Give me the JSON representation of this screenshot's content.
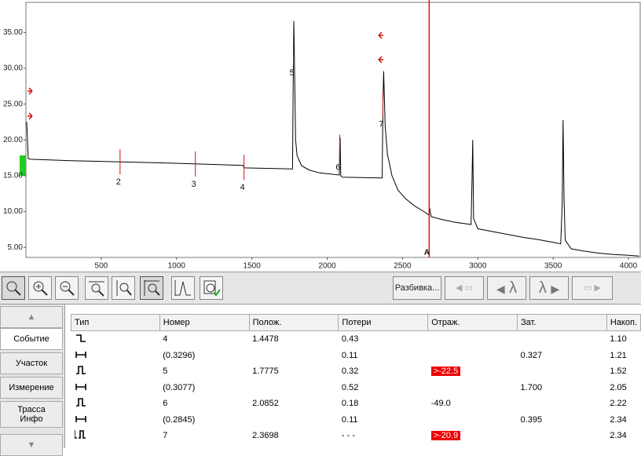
{
  "chart_data": {
    "type": "line",
    "x": [
      5,
      15,
      30,
      300,
      600,
      900,
      1200,
      1440,
      1450,
      1770,
      1775,
      1778,
      1782,
      1790,
      1800,
      1830,
      1880,
      1950,
      2080,
      2083,
      2086,
      2090,
      2100,
      2365,
      2370,
      2375,
      2385,
      2400,
      2430,
      2470,
      2520,
      2580,
      2650,
      2675,
      2680,
      2690,
      2760,
      2850,
      2955,
      2962,
      2966,
      2972,
      3000,
      3100,
      3200,
      3300,
      3400,
      3500,
      3550,
      3560,
      3566,
      3572,
      3580,
      3620,
      3700,
      3800,
      3900,
      4000,
      4070
    ],
    "series": [
      {
        "color": "#000000",
        "values": [
          22.5,
          17.4,
          17.3,
          17.1,
          16.95,
          16.8,
          16.6,
          16.45,
          16.1,
          15.95,
          30,
          36.6,
          32,
          20,
          17.8,
          16.4,
          15.8,
          15.4,
          15.1,
          19,
          20.3,
          15,
          14.8,
          14.7,
          25,
          29.6,
          22,
          18,
          15,
          13,
          11.8,
          10.8,
          9.9,
          9.5,
          10.5,
          9.3,
          8.9,
          8.5,
          8.2,
          15,
          20,
          9,
          7.6,
          7.2,
          6.8,
          6.4,
          6.1,
          5.7,
          5.5,
          11,
          22.8,
          12,
          6,
          4.8,
          4.5,
          4.2,
          4,
          3.9,
          3.8
        ]
      }
    ],
    "xlim": [
      0,
      4078
    ],
    "ylim": [
      3.6,
      39.2
    ],
    "xticks": [
      500,
      1000,
      1500,
      2000,
      2500,
      3000,
      3500,
      4000
    ],
    "yticks": [
      {
        "value": 5,
        "label": "5.00"
      },
      {
        "value": 10,
        "label": "10.00"
      },
      {
        "value": 15,
        "label": "15.00"
      },
      {
        "value": 20,
        "label": "20.00"
      },
      {
        "value": 25,
        "label": "25.00"
      },
      {
        "value": 30,
        "label": "30.00"
      },
      {
        "value": 35,
        "label": "35.00"
      }
    ],
    "events": [
      {
        "label": "2",
        "x": 625
      },
      {
        "label": "3",
        "x": 1125
      },
      {
        "label": "4",
        "x": 1448
      },
      {
        "label": "5",
        "x": 1776
      },
      {
        "label": "6",
        "x": 2083
      },
      {
        "label": "7",
        "x": 2370
      }
    ],
    "cursor": {
      "label": "A",
      "x": 2677
    }
  },
  "toolbar": {
    "split": "Разбивка...",
    "lambda_prev": "λ",
    "lambda_next": "λ"
  },
  "tabs": [
    "Событие",
    "Участок",
    "Измерение",
    "Трасса Инфо"
  ],
  "table": {
    "columns": [
      "Тип",
      "Номер",
      "Полож.",
      "Потери",
      "Отраж.",
      "Зат.",
      "Накоп."
    ],
    "rows": [
      {
        "number": "4",
        "position": "1.4478",
        "loss": "0.43",
        "cumulative": "1.10"
      },
      {
        "number": "(0.3296)",
        "loss": "0.11",
        "attenuation": "0.327",
        "cumulative": "1.21"
      },
      {
        "number": "5",
        "position": "1.7775",
        "loss": "0.32",
        "reflectance": ">-22.5",
        "cumulative": "1.52"
      },
      {
        "number": "(0.3077)",
        "loss": "0.52",
        "attenuation": "1.700",
        "cumulative": "2.05"
      },
      {
        "number": "6",
        "position": "2.0852",
        "loss": "0.18",
        "reflectance": "-49.0",
        "cumulative": "2.22"
      },
      {
        "number": "(0.2845)",
        "loss": "0.11",
        "attenuation": "0.395",
        "cumulative": "2.34"
      },
      {
        "number": "7",
        "position": "2.3698",
        "loss": "- - -",
        "reflectance": ">-20.9",
        "cumulative": "2.34"
      }
    ]
  }
}
